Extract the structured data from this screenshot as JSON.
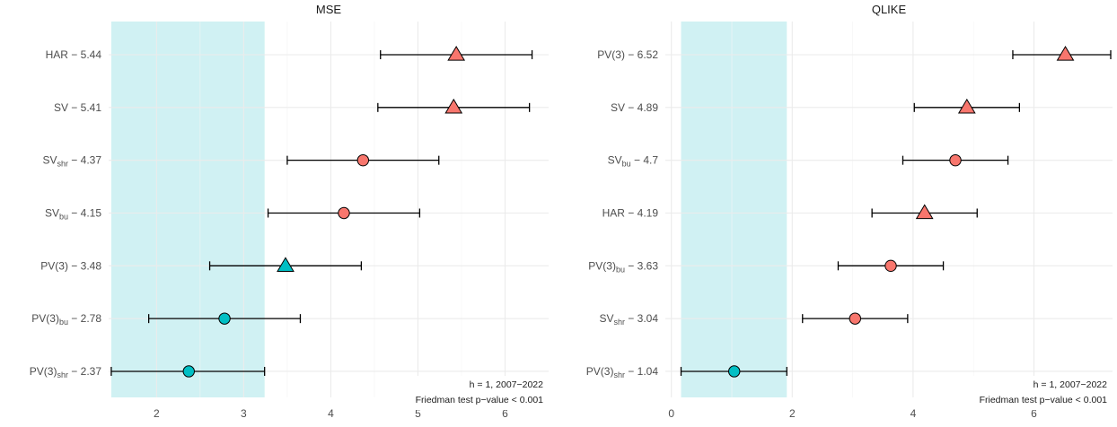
{
  "chart_data": [
    {
      "type": "scatter",
      "title": "MSE",
      "xlim": [
        1.45,
        6.5
      ],
      "xticks": [
        2,
        3,
        4,
        5,
        6
      ],
      "shaded_interval": [
        1.48,
        3.24
      ],
      "shade_color": "#cbf0f2",
      "annotations": [
        "h = 1, 2007−2022",
        "Friedman test p−value  < 0.001"
      ],
      "rows": [
        {
          "model": "HAR",
          "sub": "",
          "value": 5.44,
          "label_value": "5.44",
          "lower": 4.57,
          "upper": 6.31,
          "shape": "triangle",
          "color": "#f8766d"
        },
        {
          "model": "SV",
          "sub": "",
          "value": 5.41,
          "label_value": "5.41",
          "lower": 4.54,
          "upper": 6.28,
          "shape": "triangle",
          "color": "#f8766d"
        },
        {
          "model": "SV",
          "sub": "shr",
          "value": 4.37,
          "label_value": "4.37",
          "lower": 3.5,
          "upper": 5.24,
          "shape": "circle",
          "color": "#f8766d"
        },
        {
          "model": "SV",
          "sub": "bu",
          "value": 4.15,
          "label_value": "4.15",
          "lower": 3.28,
          "upper": 5.02,
          "shape": "circle",
          "color": "#f8766d"
        },
        {
          "model": "PV(3)",
          "sub": "",
          "value": 3.48,
          "label_value": "3.48",
          "lower": 2.61,
          "upper": 4.35,
          "shape": "triangle",
          "color": "#00bfc4"
        },
        {
          "model": "PV(3)",
          "sub": "bu",
          "value": 2.78,
          "label_value": "2.78",
          "lower": 1.91,
          "upper": 3.65,
          "shape": "circle",
          "color": "#00bfc4"
        },
        {
          "model": "PV(3)",
          "sub": "shr",
          "value": 2.37,
          "label_value": "2.37",
          "lower": 1.48,
          "upper": 3.24,
          "shape": "circle",
          "color": "#00bfc4"
        }
      ]
    },
    {
      "type": "scatter",
      "title": "QLIKE",
      "xlim": [
        -0.1,
        7.3
      ],
      "xticks": [
        0,
        2,
        4,
        6
      ],
      "shaded_interval": [
        0.16,
        1.91
      ],
      "shade_color": "#cbf0f2",
      "annotations": [
        "h = 1, 2007−2022",
        "Friedman test p−value  < 0.001"
      ],
      "rows": [
        {
          "model": "PV(3)",
          "sub": "",
          "value": 6.52,
          "label_value": "6.52",
          "lower": 5.65,
          "upper": 7.39,
          "shape": "triangle",
          "color": "#f8766d"
        },
        {
          "model": "SV",
          "sub": "",
          "value": 4.89,
          "label_value": "4.89",
          "lower": 4.02,
          "upper": 5.76,
          "shape": "triangle",
          "color": "#f8766d"
        },
        {
          "model": "SV",
          "sub": "bu",
          "value": 4.7,
          "label_value": "4.7",
          "lower": 3.83,
          "upper": 5.57,
          "shape": "circle",
          "color": "#f8766d"
        },
        {
          "model": "HAR",
          "sub": "",
          "value": 4.19,
          "label_value": "4.19",
          "lower": 3.32,
          "upper": 5.06,
          "shape": "triangle",
          "color": "#f8766d"
        },
        {
          "model": "PV(3)",
          "sub": "bu",
          "value": 3.63,
          "label_value": "3.63",
          "lower": 2.76,
          "upper": 4.5,
          "shape": "circle",
          "color": "#f8766d"
        },
        {
          "model": "SV",
          "sub": "shr",
          "value": 3.04,
          "label_value": "3.04",
          "lower": 2.17,
          "upper": 3.91,
          "shape": "circle",
          "color": "#f8766d"
        },
        {
          "model": "PV(3)",
          "sub": "shr",
          "value": 1.04,
          "label_value": "1.04",
          "lower": 0.16,
          "upper": 1.91,
          "shape": "circle",
          "color": "#00bfc4"
        }
      ]
    }
  ]
}
